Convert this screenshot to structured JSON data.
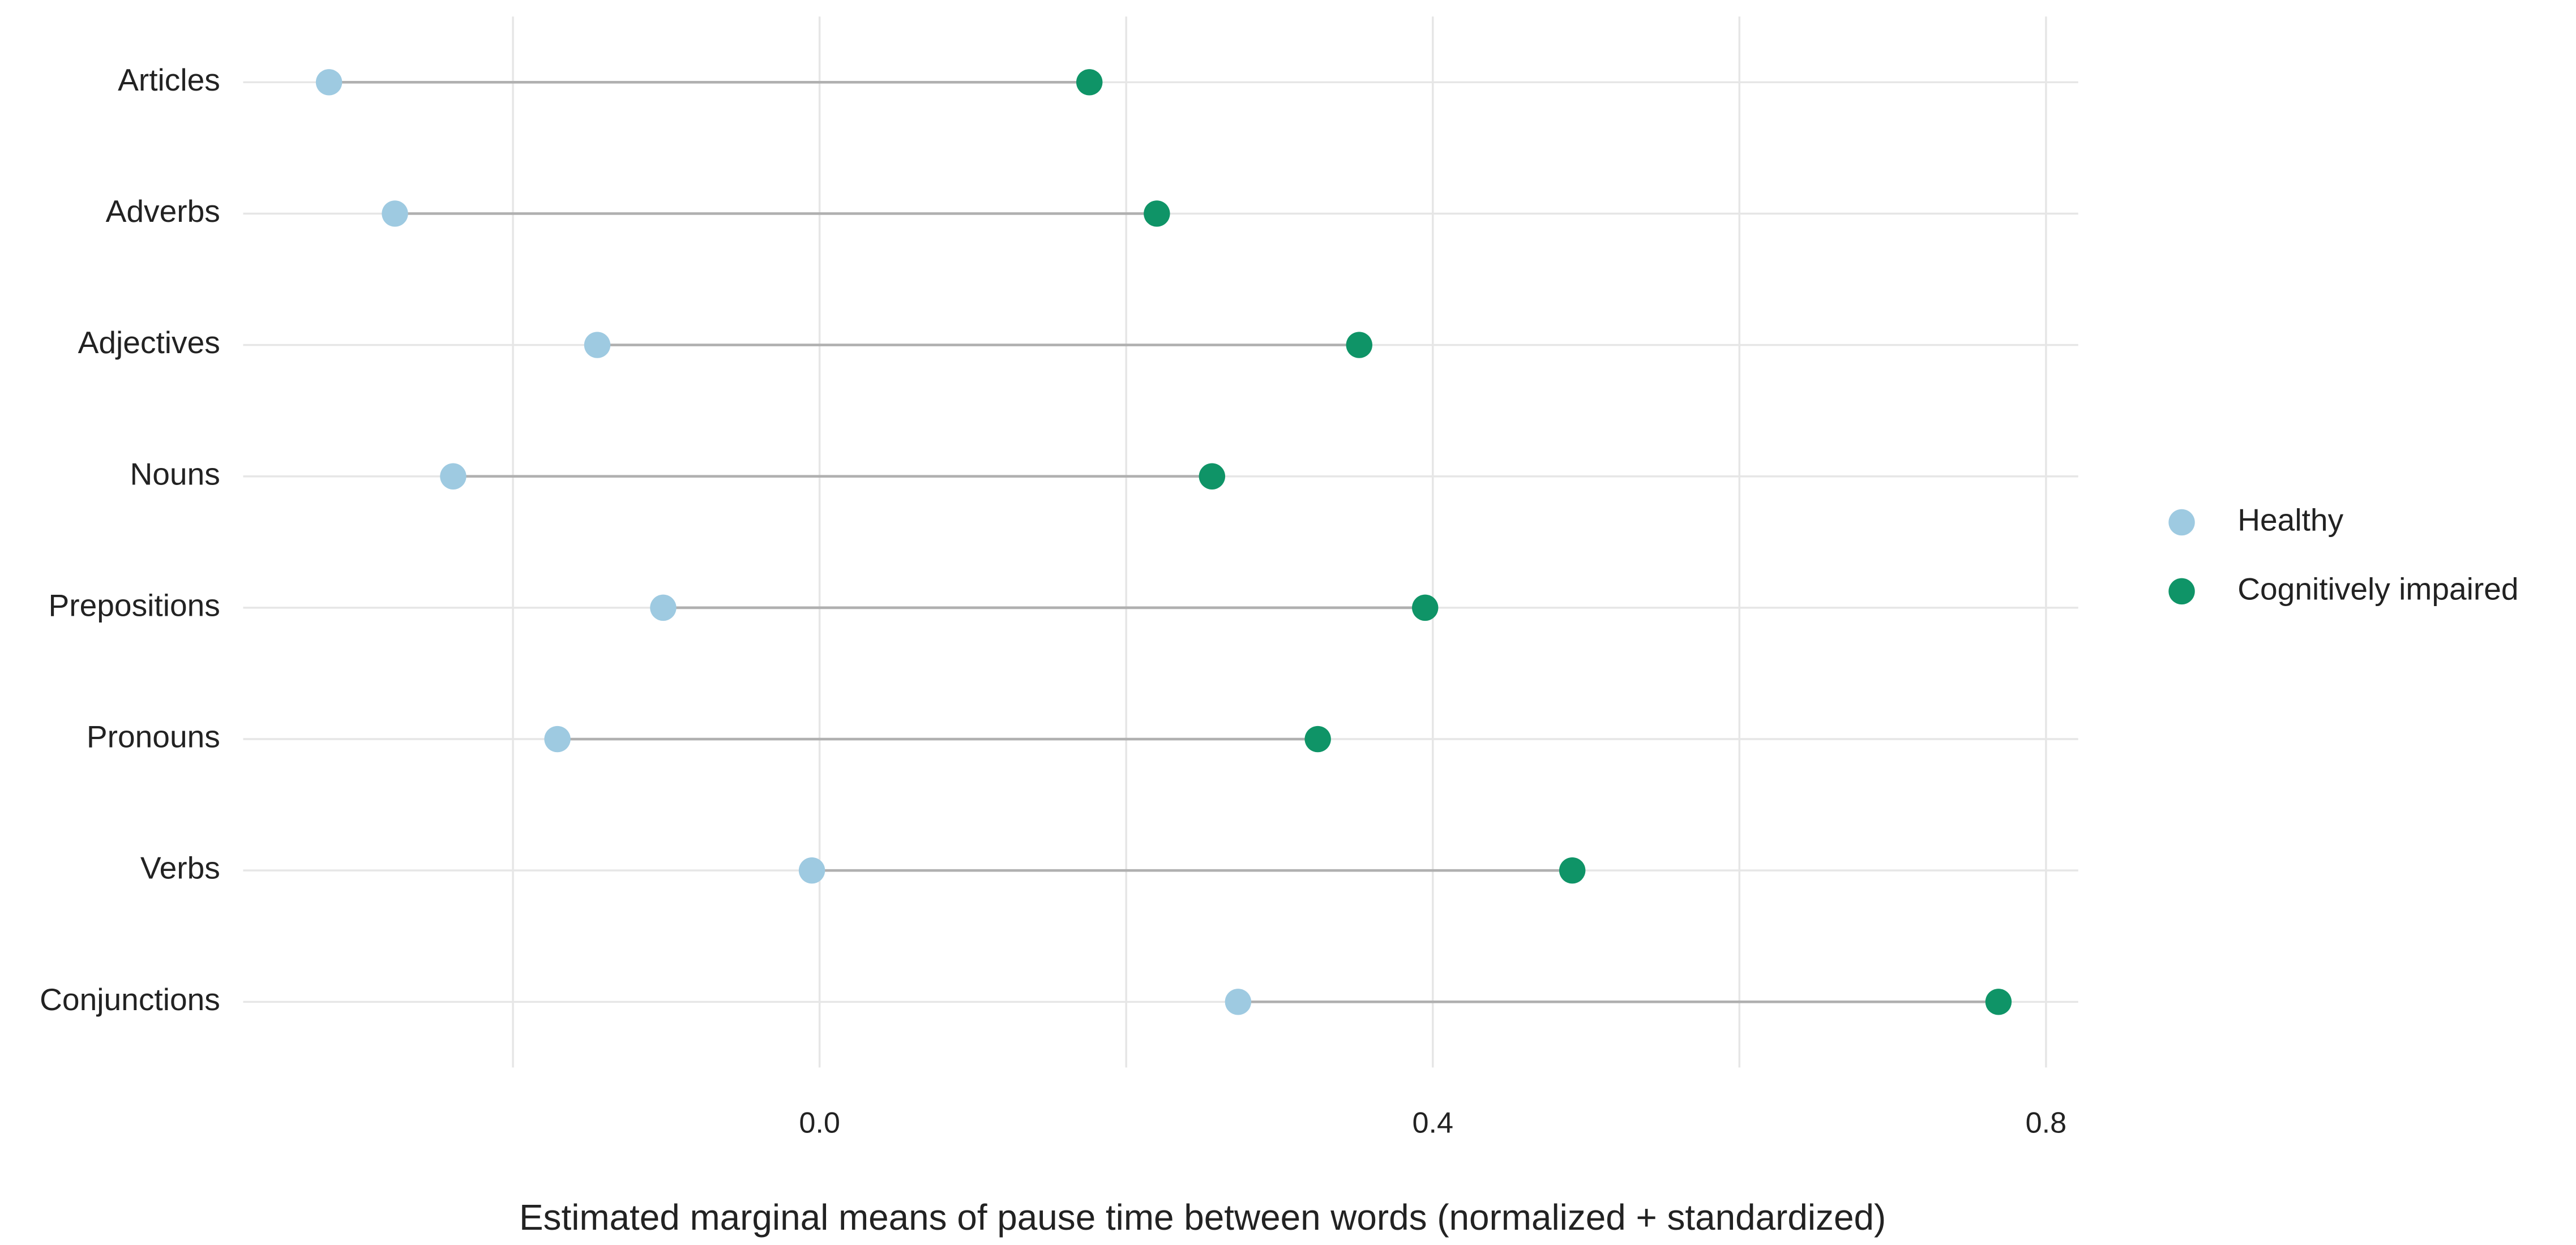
{
  "chart_data": {
    "type": "dumbbell",
    "xlabel": "Estimated marginal means of pause time between words (normalized + standardized)",
    "categories": [
      "Articles",
      "Adverbs",
      "Adjectives",
      "Nouns",
      "Prepositions",
      "Pronouns",
      "Verbs",
      "Conjunctions"
    ],
    "series": [
      {
        "name": "Healthy",
        "color": "#9ecae1",
        "values": [
          -0.32,
          -0.277,
          -0.145,
          -0.239,
          -0.102,
          -0.171,
          -0.005,
          0.273
        ]
      },
      {
        "name": "Cognitively impaired",
        "color": "#0f9467",
        "values": [
          0.176,
          0.22,
          0.352,
          0.256,
          0.395,
          0.325,
          0.491,
          0.769
        ]
      }
    ],
    "xlim": [
      -0.376,
      0.821
    ],
    "xticks": [
      {
        "value": 0,
        "label": "0.0"
      },
      0.4,
      {
        "value": 0.8,
        "label": "0.8"
      }
    ],
    "minor_xticks": [
      -0.2,
      0.2,
      0.6
    ],
    "grid": true,
    "connector_color": "#b0b0b0",
    "legend": "right"
  }
}
